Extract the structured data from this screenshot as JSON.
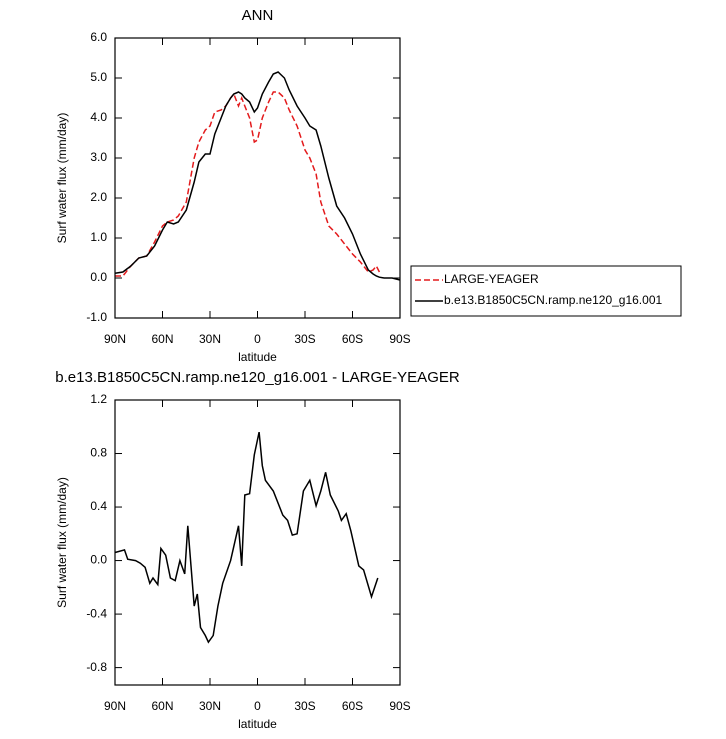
{
  "chart_data": [
    {
      "type": "line",
      "title": "ANN",
      "xlabel": "latitude",
      "ylabel": "Surf water flux (mm/day)",
      "x": [
        90,
        85,
        80,
        75,
        70,
        65,
        60,
        57,
        53,
        50,
        45,
        40,
        37,
        33,
        30,
        27,
        23,
        20,
        17,
        15,
        12,
        10,
        8,
        5,
        2,
        0,
        -3,
        -7,
        -10,
        -13,
        -17,
        -20,
        -25,
        -30,
        -33,
        -37,
        -40,
        -45,
        -50,
        -55,
        -60,
        -65,
        -70,
        -73,
        -75,
        -77,
        -80,
        -85,
        -90
      ],
      "series": [
        {
          "name": "LARGE-YEAGER",
          "color": "#e31a1c",
          "line_style": "dashed",
          "values": [
            0.05,
            0.05,
            0.3,
            0.5,
            0.55,
            0.9,
            1.3,
            1.4,
            1.45,
            1.55,
            1.9,
            3.0,
            3.4,
            3.7,
            3.8,
            4.15,
            4.2,
            4.3,
            4.5,
            4.6,
            4.3,
            4.5,
            4.3,
            4.0,
            3.4,
            3.45,
            4.0,
            4.4,
            4.65,
            4.65,
            4.5,
            4.2,
            3.8,
            3.2,
            3.0,
            2.6,
            1.9,
            1.3,
            1.1,
            0.85,
            0.6,
            0.4,
            0.15,
            0.2,
            0.3,
            0.15,
            null,
            null,
            null
          ]
        },
        {
          "name": "b.e13.B1850C5CN.ramp.ne120_g16.001",
          "color": "#000000",
          "line_style": "solid",
          "values": [
            0.12,
            0.15,
            0.3,
            0.5,
            0.55,
            0.8,
            1.2,
            1.4,
            1.35,
            1.4,
            1.7,
            2.4,
            2.9,
            3.1,
            3.1,
            3.6,
            4.0,
            4.3,
            4.5,
            4.6,
            4.65,
            4.6,
            4.5,
            4.4,
            4.15,
            4.25,
            4.6,
            4.9,
            5.1,
            5.15,
            5.0,
            4.7,
            4.3,
            4.0,
            3.8,
            3.7,
            3.3,
            2.5,
            1.8,
            1.5,
            1.1,
            0.6,
            0.2,
            0.1,
            0.05,
            0.02,
            0.0,
            0.0,
            -0.05
          ]
        }
      ],
      "xlim": [
        90,
        -90
      ],
      "xticks": [
        {
          "value": 90,
          "label": "90N"
        },
        {
          "value": 60,
          "label": "60N"
        },
        {
          "value": 30,
          "label": "30N"
        },
        0,
        {
          "value": -30,
          "label": "30S"
        },
        {
          "value": -60,
          "label": "60S"
        },
        {
          "value": -90,
          "label": "90S"
        }
      ],
      "ylim": [
        -1,
        6
      ],
      "yticks": [
        {
          "value": -1,
          "label": "-1.0"
        },
        {
          "value": 0,
          "label": "0.0"
        },
        {
          "value": 1,
          "label": "1.0"
        },
        {
          "value": 2,
          "label": "2.0"
        },
        {
          "value": 3,
          "label": "3.0"
        },
        {
          "value": 4,
          "label": "4.0"
        },
        {
          "value": 5,
          "label": "5.0"
        },
        {
          "value": 6,
          "label": "6.0"
        }
      ],
      "legend": "right"
    },
    {
      "type": "line",
      "title": "b.e13.B1850C5CN.ramp.ne120_g16.001 - LARGE-YEAGER",
      "xlabel": "latitude",
      "ylabel": "Surf water flux (mm/day)",
      "x": [
        90,
        84,
        82,
        77,
        74,
        71,
        68,
        66,
        63,
        61,
        58,
        55,
        52,
        49,
        46,
        44,
        42,
        40,
        38,
        36,
        33,
        31,
        28,
        25,
        22,
        17,
        12,
        10,
        8,
        5,
        2,
        -1,
        -3,
        -5,
        -10,
        -16,
        -19,
        -22,
        -25,
        -29,
        -33,
        -37,
        -40,
        -43,
        -46,
        -51,
        -53,
        -56,
        -59,
        -64,
        -67,
        -72,
        -76
      ],
      "series": [
        {
          "color": "#000000",
          "line_style": "solid",
          "values": [
            0.06,
            0.08,
            0.01,
            0,
            -0.02,
            -0.05,
            -0.17,
            -0.13,
            -0.18,
            0.09,
            0.04,
            -0.13,
            -0.15,
            0,
            -0.1,
            0.26,
            -0.04,
            -0.34,
            -0.25,
            -0.5,
            -0.56,
            -0.61,
            -0.56,
            -0.34,
            -0.17,
            0,
            0.26,
            -0.04,
            0.49,
            0.5,
            0.79,
            0.96,
            0.71,
            0.6,
            0.52,
            0.34,
            0.3,
            0.19,
            0.2,
            0.52,
            0.6,
            0.41,
            0.52,
            0.66,
            0.49,
            0.37,
            0.3,
            0.35,
            0.22,
            -0.04,
            -0.07,
            -0.27,
            -0.13
          ]
        }
      ],
      "xlim": [
        90,
        -90
      ],
      "xticks": [
        {
          "value": 90,
          "label": "90N"
        },
        {
          "value": 60,
          "label": "60N"
        },
        {
          "value": 30,
          "label": "30N"
        },
        0,
        {
          "value": -30,
          "label": "30S"
        },
        {
          "value": -60,
          "label": "60S"
        },
        {
          "value": -90,
          "label": "90S"
        }
      ],
      "ylim": [
        -0.93,
        1.2
      ],
      "yticks": [
        -0.8,
        -0.4,
        {
          "value": 0,
          "label": "0.0"
        },
        0.4,
        0.8,
        1.2
      ]
    }
  ]
}
